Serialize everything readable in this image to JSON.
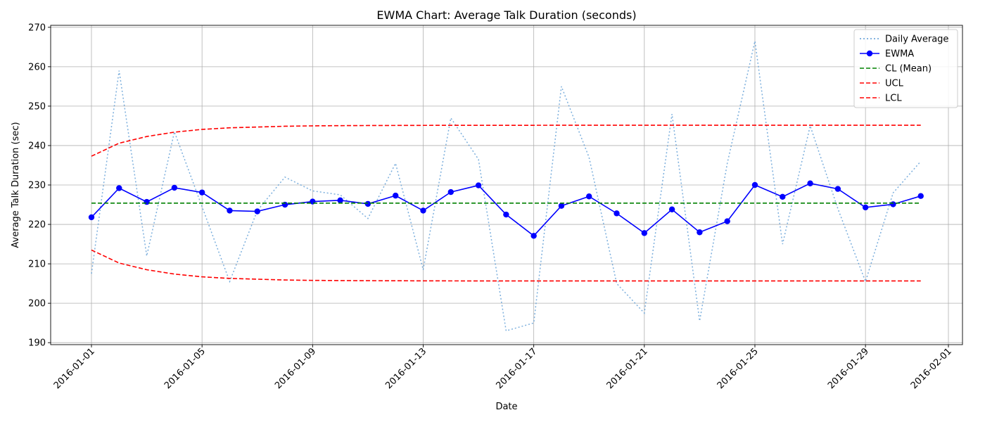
{
  "chart_data": {
    "type": "line",
    "title": "EWMA Chart: Average Talk Duration (seconds)",
    "xlabel": "Date",
    "ylabel": "Average Talk Duration (sec)",
    "x": [
      "2016-01-01",
      "2016-01-02",
      "2016-01-03",
      "2016-01-04",
      "2016-01-05",
      "2016-01-06",
      "2016-01-07",
      "2016-01-08",
      "2016-01-09",
      "2016-01-10",
      "2016-01-11",
      "2016-01-12",
      "2016-01-13",
      "2016-01-14",
      "2016-01-15",
      "2016-01-16",
      "2016-01-17",
      "2016-01-18",
      "2016-01-19",
      "2016-01-20",
      "2016-01-21",
      "2016-01-22",
      "2016-01-23",
      "2016-01-24",
      "2016-01-25",
      "2016-01-26",
      "2016-01-27",
      "2016-01-28",
      "2016-01-29",
      "2016-01-30",
      "2016-01-31"
    ],
    "xlim": [
      "2015-12-30",
      "2016-02-01"
    ],
    "ylim": [
      189.5,
      270.5
    ],
    "x_ticks": [
      "2016-01-01",
      "2016-01-05",
      "2016-01-09",
      "2016-01-13",
      "2016-01-17",
      "2016-01-21",
      "2016-01-25",
      "2016-01-29",
      "2016-02-01"
    ],
    "y_ticks": [
      190,
      200,
      210,
      220,
      230,
      240,
      250,
      260,
      270
    ],
    "grid": true,
    "legend_position": "top-right",
    "series": [
      {
        "name": "Daily Average",
        "style": "dotted",
        "color": "#5b9bd5",
        "values": [
          207.5,
          259,
          212,
          243.5,
          224.5,
          205.5,
          223.5,
          232,
          228.5,
          227.5,
          221.5,
          235.5,
          208.5,
          247,
          236.5,
          193,
          195,
          255,
          237,
          205,
          197.5,
          248,
          195.5,
          235.5,
          266.5,
          215,
          245,
          224,
          205.5,
          228,
          236
        ]
      },
      {
        "name": "EWMA",
        "style": "solid-markers",
        "color": "#0000ff",
        "values": [
          221.8,
          229.2,
          225.7,
          229.3,
          228.1,
          223.5,
          223.3,
          225,
          225.8,
          226.1,
          225.2,
          227.3,
          223.5,
          228.2,
          229.9,
          222.5,
          217.1,
          224.7,
          227.1,
          222.8,
          217.8,
          223.8,
          218,
          220.8,
          230,
          227,
          230.4,
          229,
          224.3,
          225.1,
          227.2
        ]
      },
      {
        "name": "CL (Mean)",
        "style": "dashed",
        "color": "#008000",
        "values": [
          225.4,
          225.4,
          225.4,
          225.4,
          225.4,
          225.4,
          225.4,
          225.4,
          225.4,
          225.4,
          225.4,
          225.4,
          225.4,
          225.4,
          225.4,
          225.4,
          225.4,
          225.4,
          225.4,
          225.4,
          225.4,
          225.4,
          225.4,
          225.4,
          225.4,
          225.4,
          225.4,
          225.4,
          225.4,
          225.4,
          225.4
        ]
      },
      {
        "name": "UCL",
        "style": "dashed",
        "color": "#ff0000",
        "values": [
          237.3,
          240.6,
          242.3,
          243.4,
          244.1,
          244.5,
          244.7,
          244.9,
          245.0,
          245.05,
          245.08,
          245.1,
          245.12,
          245.13,
          245.14,
          245.14,
          245.14,
          245.15,
          245.15,
          245.15,
          245.15,
          245.15,
          245.15,
          245.15,
          245.15,
          245.15,
          245.15,
          245.15,
          245.15,
          245.15,
          245.15
        ]
      },
      {
        "name": "LCL",
        "style": "dashed",
        "color": "#ff0000",
        "values": [
          213.5,
          210.2,
          208.5,
          207.4,
          206.7,
          206.3,
          206.1,
          205.9,
          205.8,
          205.75,
          205.72,
          205.7,
          205.68,
          205.67,
          205.66,
          205.66,
          205.66,
          205.65,
          205.65,
          205.65,
          205.65,
          205.65,
          205.65,
          205.65,
          205.65,
          205.65,
          205.65,
          205.65,
          205.65,
          205.65,
          205.65
        ]
      }
    ]
  }
}
